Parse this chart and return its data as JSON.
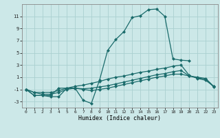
{
  "bg_color": "#cce8e8",
  "grid_color": "#aad0d0",
  "line_color": "#1a6b6b",
  "xlabel": "Humidex (Indice chaleur)",
  "xlim": [
    -0.5,
    23.5
  ],
  "ylim": [
    -4,
    13
  ],
  "yticks": [
    -3,
    -1,
    1,
    3,
    5,
    7,
    9,
    11
  ],
  "xticks": [
    0,
    1,
    2,
    3,
    4,
    5,
    6,
    7,
    8,
    9,
    10,
    11,
    12,
    13,
    14,
    15,
    16,
    17,
    18,
    19,
    20,
    21,
    22,
    23
  ],
  "line1_x": [
    0,
    1,
    2,
    3,
    4,
    5,
    6,
    7,
    8,
    9,
    10,
    11,
    12,
    13,
    14,
    15,
    16,
    17,
    18,
    19,
    20
  ],
  "line1_y": [
    -1.0,
    -2.0,
    -2.0,
    -2.0,
    -0.8,
    -0.8,
    -0.8,
    -2.8,
    -3.3,
    0.5,
    5.4,
    7.2,
    8.5,
    10.8,
    11.1,
    12.1,
    12.2,
    11.0,
    4.0,
    3.8,
    3.7
  ],
  "line2_x": [
    0,
    1,
    2,
    3,
    4,
    5,
    6,
    7,
    8,
    9,
    10,
    11,
    12,
    13,
    14,
    15,
    16,
    17,
    18,
    19,
    20,
    21,
    22,
    23
  ],
  "line2_y": [
    -1.0,
    -2.0,
    -2.0,
    -2.2,
    -2.2,
    -0.8,
    -0.8,
    -1.0,
    -1.2,
    -1.0,
    -0.8,
    -0.5,
    -0.2,
    0.1,
    0.4,
    0.7,
    1.0,
    1.2,
    1.5,
    1.5,
    1.2,
    1.0,
    0.8,
    -0.5
  ],
  "line3_x": [
    0,
    1,
    2,
    3,
    4,
    5,
    6,
    7,
    8,
    9,
    10,
    11,
    12,
    13,
    14,
    15,
    16,
    17,
    18,
    19,
    20,
    21,
    22,
    23
  ],
  "line3_y": [
    -1.0,
    -1.5,
    -1.8,
    -1.8,
    -1.5,
    -1.0,
    -0.8,
    -0.9,
    -0.8,
    -0.6,
    -0.4,
    -0.1,
    0.2,
    0.5,
    0.8,
    1.1,
    1.4,
    1.6,
    1.9,
    2.1,
    1.2,
    0.9,
    0.7,
    -0.6
  ],
  "line4_x": [
    0,
    1,
    2,
    3,
    4,
    5,
    6,
    7,
    8,
    9,
    10,
    11,
    12,
    13,
    14,
    15,
    16,
    17,
    18,
    19,
    20,
    21,
    22,
    23
  ],
  "line4_y": [
    -1.0,
    -1.5,
    -1.5,
    -1.5,
    -1.2,
    -0.8,
    -0.5,
    -0.3,
    0.0,
    0.3,
    0.7,
    1.0,
    1.2,
    1.5,
    1.8,
    2.0,
    2.3,
    2.5,
    2.8,
    3.0,
    1.3,
    0.8,
    0.5,
    -0.5
  ]
}
